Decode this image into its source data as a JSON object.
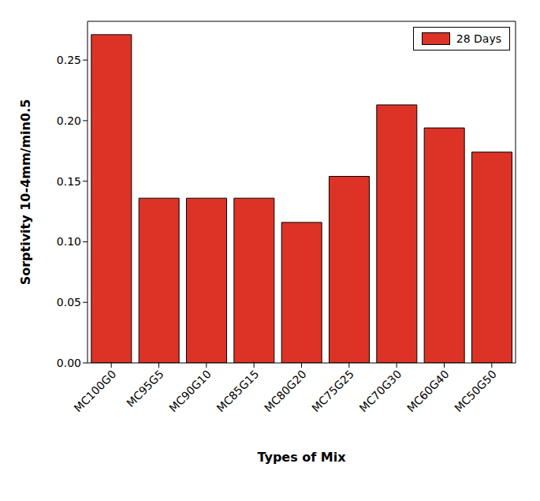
{
  "chart_data": {
    "type": "bar",
    "x_label": "Types of Mix",
    "y_label": "Sorptivity 10-4mm/min0.5",
    "categories": [
      "MC100G0",
      "MC95G5",
      "MC90G10",
      "MC85G15",
      "MC80G20",
      "MC75G25",
      "MC70G30",
      "MC60G40",
      "MC50G50"
    ],
    "series": [
      {
        "name": "28 Days",
        "color": "#dd3327",
        "values": [
          0.271,
          0.136,
          0.136,
          0.136,
          0.116,
          0.154,
          0.213,
          0.194,
          0.174
        ]
      }
    ],
    "ylim": [
      0,
      0.282
    ],
    "yticks": [
      {
        "value": 0,
        "label": "0.00"
      },
      0.05,
      {
        "value": 0.1,
        "label": "0.10"
      },
      0.15,
      {
        "value": 0.2,
        "label": "0.20"
      },
      0.25
    ],
    "legend": "upper right",
    "grid": false
  }
}
